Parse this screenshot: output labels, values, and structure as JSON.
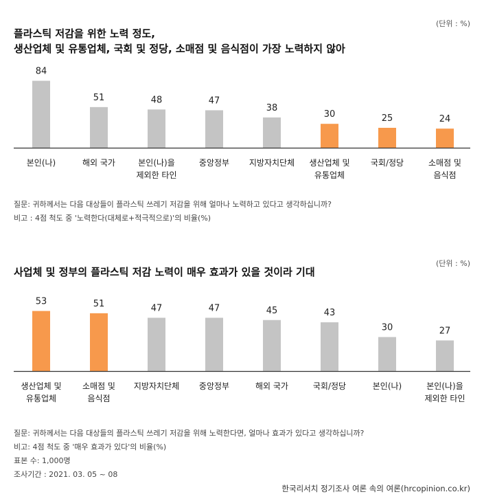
{
  "charts": [
    {
      "title_line1": "플라스틱 저감을 위한 노력 정도,",
      "title_line2": "생산업체 및 유통업체,  국회 및 정당, 소매점 및 음식점이 가장 노력하지 않아",
      "unit": "(단위 : %)",
      "question": "질문:  귀하께서는 다음 대상들이 플라스틱 쓰레기 저감을 위해 얼마나 노력하고 있다고 생각하십니까?",
      "note": "비고 : 4점 척도 중 '노력한다(대체로+적극적으로)'의 비율(%)"
    },
    {
      "title_line1": "사업체 및 정부의 플라스틱 저감 노력이 매우 효과가 있을 것이라 기대",
      "unit": "(단위 : %)",
      "question": "질문:  귀하께서는 다음 대상들의 플라스틱 쓰레기 저감을 위해 노력한다면, 얼마나 효과가 있다고 생각하십니까?",
      "note": "비고: 4점 척도 중 '매우 효과가 있다'의 비율(%)",
      "sample": "표본 수: 1,000명",
      "period": "조사기간 : 2021. 03. 05 ~ 08"
    }
  ],
  "credit": "한국리서치 정기조사 여론 속의 여론(hrcopinion.co.kr)",
  "colors": {
    "gray": "#c4c4c4",
    "orange": "#f7994c",
    "axis": "#333333"
  },
  "chart_data": [
    {
      "type": "bar",
      "title": "플라스틱 저감을 위한 노력 정도",
      "categories": [
        [
          "본인(나)"
        ],
        [
          "해외 국가"
        ],
        [
          "본인(나)을",
          "제외한 타인"
        ],
        [
          "중앙정부"
        ],
        [
          "지방자치단체"
        ],
        [
          "생산업체 및",
          "유통업체"
        ],
        [
          "국회/정당"
        ],
        [
          "소매점 및",
          "음식점"
        ]
      ],
      "values": [
        84,
        51,
        48,
        47,
        38,
        30,
        25,
        24
      ],
      "highlight": [
        false,
        false,
        false,
        false,
        false,
        true,
        true,
        true
      ],
      "ylim": [
        0,
        100
      ],
      "xlabel": "",
      "ylabel": ""
    },
    {
      "type": "bar",
      "title": "사업체 및 정부의 플라스틱 저감 노력이 매우 효과가 있을 것이라 기대",
      "categories": [
        [
          "생산업체 및",
          "유통업체"
        ],
        [
          "소매점 및",
          "음식점"
        ],
        [
          "지방자치단체"
        ],
        [
          "중앙정부"
        ],
        [
          "해외 국가"
        ],
        [
          "국회/정당"
        ],
        [
          "본인(나)"
        ],
        [
          "본인(나)을",
          "제외한 타인"
        ]
      ],
      "values": [
        53,
        51,
        47,
        47,
        45,
        43,
        30,
        27
      ],
      "highlight": [
        true,
        true,
        false,
        false,
        false,
        false,
        false,
        false
      ],
      "ylim": [
        0,
        100
      ],
      "xlabel": "",
      "ylabel": ""
    }
  ]
}
